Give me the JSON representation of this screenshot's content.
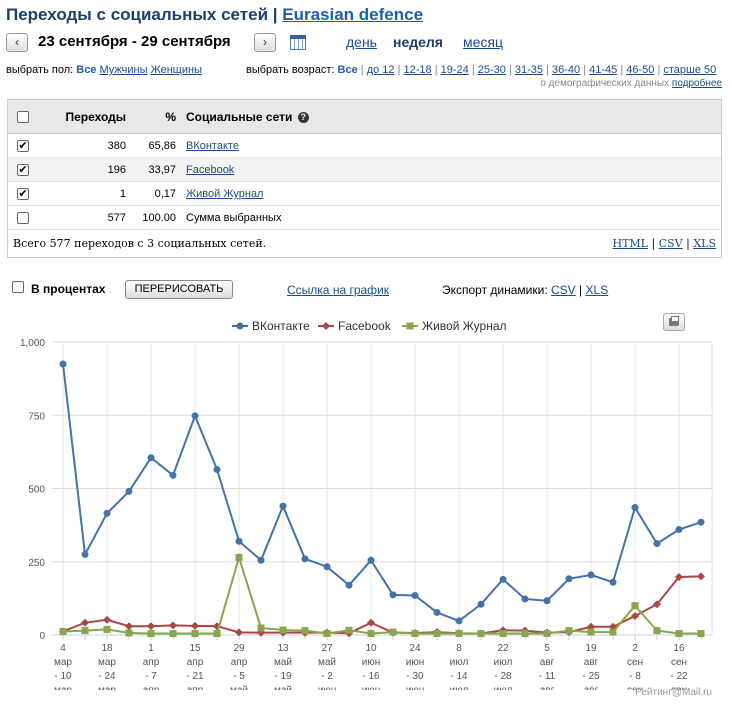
{
  "header": {
    "title_prefix": "Переходы с социальных сетей",
    "title_sep": "|",
    "site_link": "Eurasian defence"
  },
  "period": {
    "prev": "‹",
    "next": "›",
    "dates": "23 сентября - 29 сентября",
    "links": [
      {
        "label": "день",
        "active": false
      },
      {
        "label": "неделя",
        "active": true
      },
      {
        "label": "месяц",
        "active": false
      }
    ]
  },
  "filters": {
    "gender_label": "выбрать пол:",
    "gender_all": "Все",
    "gender_options": [
      "Мужчины",
      "Женщины"
    ],
    "age_label": "выбрать возраст:",
    "age_all": "Все",
    "age_options": [
      "до 12",
      "12-18",
      "19-24",
      "25-30",
      "31-35",
      "36-40",
      "41-45",
      "46-50",
      "старше 50"
    ],
    "demo_text": "о демографических данных",
    "demo_link": "подробнее"
  },
  "table": {
    "headers": {
      "visits": "Переходы",
      "percent": "%",
      "network": "Социальные сети",
      "help": "?"
    },
    "rows": [
      {
        "checked": true,
        "visits": "380",
        "percent": "65,86",
        "network": "ВКонтакте",
        "link": true
      },
      {
        "checked": true,
        "visits": "196",
        "percent": "33,97",
        "network": "Facebook",
        "link": true
      },
      {
        "checked": true,
        "visits": "1",
        "percent": "0,17",
        "network": "Живой Журнал",
        "link": true
      },
      {
        "checked": false,
        "visits": "577",
        "percent": "100.00",
        "network": "Сумма выбранных",
        "link": false
      }
    ],
    "total": "Всего 577 переходов с 3 социальных сетей.",
    "export": [
      "HTML",
      "CSV",
      "XLS"
    ],
    "export_sep": "|"
  },
  "controls": {
    "percent_label": "В процентах",
    "redraw": "ПЕРЕРИСОВАТЬ",
    "chart_link": "Ссылка на график",
    "export_label": "Экспорт динамики:",
    "export": [
      "CSV",
      "XLS"
    ],
    "export_sep": "|"
  },
  "chart_data": {
    "type": "line",
    "ylim": [
      0,
      1000
    ],
    "yticks": [
      "0",
      "250",
      "500",
      "750",
      "1,000"
    ],
    "ytick_values": [
      0,
      250,
      500,
      750,
      1000
    ],
    "legend_placement": "top-center",
    "grid": true,
    "x_labels": [
      [
        "4",
        "мар",
        "- 10",
        "мар"
      ],
      [
        "18",
        "мар",
        "- 24",
        "мар"
      ],
      [
        "1",
        "апр",
        "- 7",
        "апр"
      ],
      [
        "15",
        "апр",
        "- 21",
        "апр"
      ],
      [
        "29",
        "апр",
        "- 5",
        "май"
      ],
      [
        "13",
        "май",
        "- 19",
        "май"
      ],
      [
        "27",
        "май",
        "- 2",
        "июн"
      ],
      [
        "10",
        "июн",
        "- 16",
        "июн"
      ],
      [
        "24",
        "июн",
        "- 30",
        "июн"
      ],
      [
        "8",
        "июл",
        "- 14",
        "июл"
      ],
      [
        "22",
        "июл",
        "- 28",
        "июл"
      ],
      [
        "5",
        "авг",
        "- 11",
        "авг"
      ],
      [
        "19",
        "авг",
        "- 25",
        "авг"
      ],
      [
        "2",
        "сен",
        "- 8",
        "сен"
      ],
      [
        "16",
        "сен",
        "- 22",
        "сен"
      ]
    ],
    "series": [
      {
        "name": "ВКонтакте",
        "color": "#4572a7",
        "marker": "circle",
        "values": [
          925,
          275,
          415,
          490,
          605,
          545,
          748,
          565,
          320,
          255,
          440,
          260,
          233,
          170,
          255,
          137,
          135,
          77,
          48,
          105,
          190,
          123,
          117,
          192,
          205,
          180,
          435,
          312,
          360,
          385
        ]
      },
      {
        "name": "Facebook",
        "color": "#aa4643",
        "marker": "diamond",
        "values": [
          12,
          42,
          52,
          30,
          30,
          33,
          31,
          30,
          9,
          8,
          8,
          8,
          8,
          6,
          42,
          8,
          7,
          10,
          6,
          5,
          16,
          15,
          8,
          10,
          28,
          28,
          65,
          105,
          198,
          200
        ]
      },
      {
        "name": "Живой Журнал",
        "color": "#89a54e",
        "marker": "square",
        "values": [
          12,
          15,
          19,
          7,
          5,
          5,
          5,
          5,
          265,
          24,
          17,
          15,
          5,
          16,
          5,
          10,
          5,
          5,
          5,
          5,
          5,
          5,
          5,
          15,
          10,
          10,
          100,
          15,
          5,
          5
        ]
      }
    ]
  },
  "watermark": "Рейтинг@Mail.ru"
}
